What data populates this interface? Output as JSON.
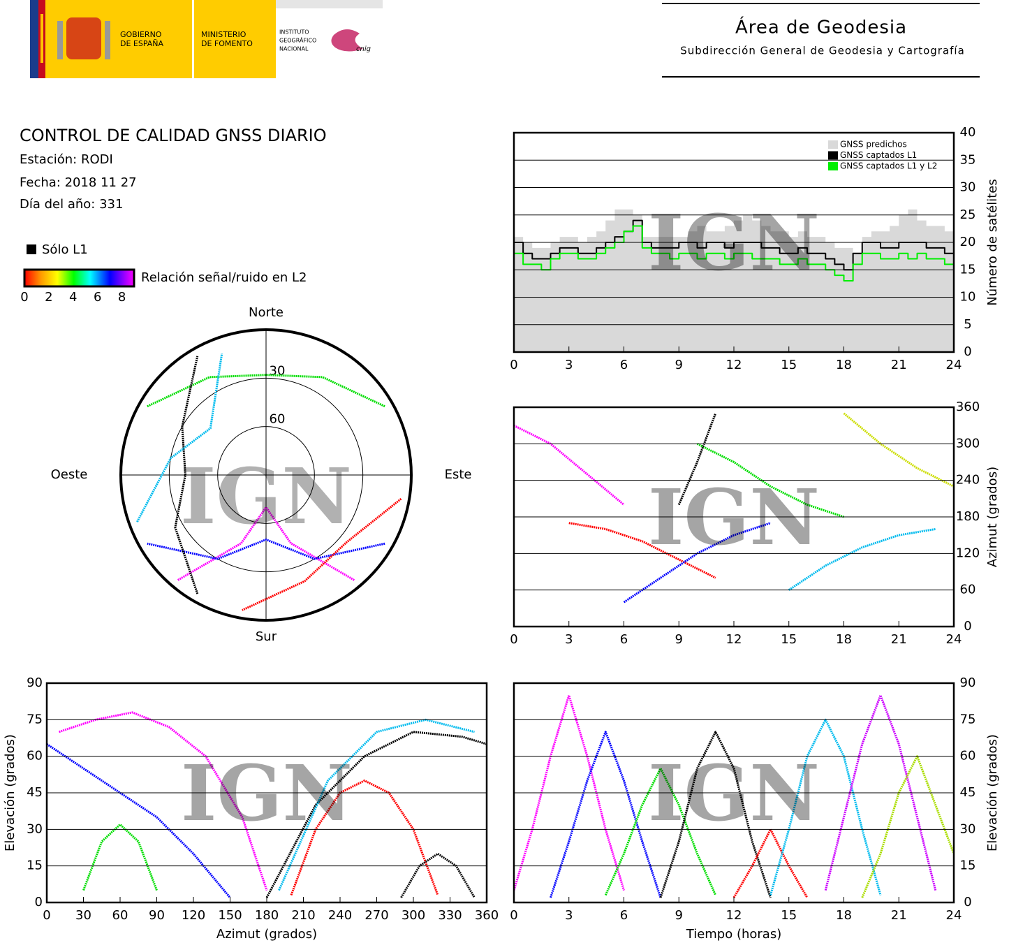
{
  "header": {
    "gov": [
      "GOBIERNO",
      "DE ESPAÑA"
    ],
    "ministry": [
      "MINISTERIO",
      "DE FOMENTO"
    ],
    "institute": [
      "INSTITUTO",
      "GEOGRÁFICO",
      "NACIONAL"
    ],
    "cnig": "cnig",
    "area": "Área de Geodesia",
    "subarea": "Subdirección General de Geodesia y Cartografía"
  },
  "report": {
    "title": "CONTROL DE CALIDAD GNSS DIARIO",
    "station": "Estación: RODI",
    "date": "Fecha: 2018 11 27",
    "doy": "Día del año: 331"
  },
  "legend": {
    "l1_only": "Sólo L1",
    "snr_label": "Relación señal/ruido en L2",
    "snr_ticks": [
      0,
      2,
      4,
      6,
      8
    ]
  },
  "chart_data": [
    {
      "type": "line",
      "step": true,
      "watermark": "IGN",
      "grid": true,
      "legend": "upper right",
      "yaxis_side": "right",
      "ylabel": "Número de satélites",
      "xlim": [
        0,
        24
      ],
      "xticks": [
        0,
        3,
        6,
        9,
        12,
        15,
        18,
        21,
        24
      ],
      "ylim": [
        0,
        40
      ],
      "yticks": [
        0,
        5,
        10,
        15,
        20,
        25,
        30,
        35,
        40
      ],
      "x": [
        0,
        0.5,
        1,
        1.5,
        2,
        2.5,
        3,
        3.5,
        4,
        4.5,
        5,
        5.5,
        6,
        6.5,
        7,
        7.5,
        8,
        8.5,
        9,
        9.5,
        10,
        10.5,
        11,
        11.5,
        12,
        12.5,
        13,
        13.5,
        14,
        14.5,
        15,
        15.5,
        16,
        16.5,
        17,
        17.5,
        18,
        18.5,
        19,
        19.5,
        20,
        20.5,
        21,
        21.5,
        22,
        22.5,
        23,
        23.5,
        24
      ],
      "series": [
        {
          "name": "GNSS predichos",
          "color": "#d9d9d9",
          "area": true,
          "values": [
            21,
            20,
            19,
            19,
            20,
            21,
            21,
            20,
            21,
            22,
            24,
            26,
            26,
            25,
            21,
            21,
            21,
            21,
            21,
            22,
            23,
            22,
            22,
            23,
            24,
            25,
            24,
            23,
            22,
            22,
            21,
            22,
            21,
            21,
            20,
            19,
            19,
            18,
            21,
            22,
            22,
            23,
            25,
            26,
            24,
            23,
            23,
            22,
            21
          ]
        },
        {
          "name": "GNSS captados L1",
          "color": "#000000",
          "values": [
            20,
            18,
            17,
            17,
            18,
            19,
            19,
            18,
            18,
            19,
            20,
            21,
            22,
            24,
            20,
            19,
            19,
            19,
            20,
            20,
            19,
            20,
            20,
            19,
            20,
            20,
            20,
            19,
            19,
            18,
            18,
            19,
            18,
            18,
            17,
            16,
            15,
            18,
            20,
            20,
            19,
            19,
            20,
            20,
            20,
            19,
            19,
            18,
            18
          ]
        },
        {
          "name": "GNSS captados L1 y L2",
          "color": "#00ee00",
          "values": [
            18,
            16,
            16,
            15,
            17,
            18,
            18,
            17,
            17,
            18,
            19,
            20,
            22,
            23,
            19,
            18,
            18,
            17,
            18,
            18,
            17,
            18,
            18,
            17,
            18,
            18,
            17,
            17,
            17,
            16,
            16,
            17,
            16,
            16,
            15,
            14,
            13,
            16,
            18,
            18,
            17,
            17,
            18,
            17,
            18,
            17,
            17,
            16,
            16
          ]
        }
      ]
    },
    {
      "type": "line",
      "watermark": "IGN",
      "grid": true,
      "yaxis_side": "right",
      "ylabel": "Azimut (grados)",
      "xlim": [
        0,
        24
      ],
      "xticks": [
        0,
        3,
        6,
        9,
        12,
        15,
        18,
        21,
        24
      ],
      "ylim": [
        0,
        360
      ],
      "yticks": [
        0,
        60,
        120,
        180,
        240,
        300,
        360
      ],
      "series": [
        {
          "color": "#ff00ff",
          "x": [
            0,
            2,
            4,
            6
          ],
          "values": [
            330,
            300,
            250,
            200
          ]
        },
        {
          "color": "#ff0000",
          "x": [
            3,
            5,
            7,
            9,
            11
          ],
          "values": [
            170,
            160,
            140,
            110,
            80
          ]
        },
        {
          "color": "#0000ff",
          "x": [
            6,
            8,
            10,
            12,
            14
          ],
          "values": [
            40,
            80,
            120,
            150,
            170
          ]
        },
        {
          "color": "#00dd00",
          "x": [
            10,
            12,
            14,
            16,
            18
          ],
          "values": [
            300,
            270,
            230,
            200,
            180
          ]
        },
        {
          "color": "#000000",
          "x": [
            9,
            10,
            11
          ],
          "values": [
            200,
            270,
            350
          ]
        },
        {
          "color": "#00bbee",
          "x": [
            15,
            17,
            19,
            21,
            23
          ],
          "values": [
            60,
            100,
            130,
            150,
            160
          ]
        },
        {
          "color": "#ccdd00",
          "x": [
            18,
            20,
            22,
            24
          ],
          "values": [
            350,
            300,
            260,
            230
          ]
        }
      ]
    },
    {
      "type": "line",
      "watermark": "IGN",
      "grid": true,
      "yaxis_side": "left",
      "xlabel": "Azimut (grados)",
      "ylabel": "Elevación (grados)",
      "xlim": [
        0,
        360
      ],
      "xticks": [
        0,
        30,
        60,
        90,
        120,
        150,
        180,
        210,
        240,
        270,
        300,
        330,
        360
      ],
      "ylim": [
        0,
        90
      ],
      "yticks": [
        0,
        15,
        30,
        45,
        60,
        75,
        90
      ],
      "series": [
        {
          "color": "#ff00ff",
          "x": [
            10,
            40,
            70,
            100,
            130,
            160,
            180
          ],
          "values": [
            70,
            75,
            78,
            72,
            60,
            35,
            5
          ]
        },
        {
          "color": "#ff0000",
          "x": [
            200,
            220,
            240,
            260,
            280,
            300,
            320
          ],
          "values": [
            3,
            30,
            45,
            50,
            45,
            30,
            3
          ]
        },
        {
          "color": "#000000",
          "x": [
            180,
            220,
            260,
            300,
            340,
            360
          ],
          "values": [
            2,
            40,
            60,
            70,
            68,
            65
          ]
        },
        {
          "color": "#0000ff",
          "x": [
            0,
            30,
            60,
            90,
            120,
            150
          ],
          "values": [
            65,
            55,
            45,
            35,
            20,
            2
          ]
        },
        {
          "color": "#00dd00",
          "x": [
            30,
            45,
            60,
            75,
            90
          ],
          "values": [
            5,
            25,
            32,
            25,
            5
          ]
        },
        {
          "color": "#00bbee",
          "x": [
            190,
            230,
            270,
            310,
            350
          ],
          "values": [
            5,
            50,
            70,
            75,
            70
          ]
        },
        {
          "color": "#111111",
          "x": [
            290,
            305,
            320,
            335,
            350
          ],
          "values": [
            2,
            15,
            20,
            15,
            2
          ]
        }
      ]
    },
    {
      "type": "line",
      "watermark": "IGN",
      "grid": true,
      "yaxis_side": "right",
      "xlabel": "Tiempo (horas)",
      "ylabel": "Elevación (grados)",
      "xlim": [
        0,
        24
      ],
      "xticks": [
        0,
        3,
        6,
        9,
        12,
        15,
        18,
        21,
        24
      ],
      "ylim": [
        0,
        90
      ],
      "yticks": [
        0,
        15,
        30,
        45,
        60,
        75,
        90
      ],
      "series": [
        {
          "color": "#ff00ff",
          "x": [
            0,
            1,
            2,
            3,
            4,
            5,
            6
          ],
          "values": [
            5,
            30,
            60,
            85,
            60,
            30,
            5
          ]
        },
        {
          "color": "#0000ff",
          "x": [
            2,
            3,
            4,
            5,
            6,
            7,
            8
          ],
          "values": [
            2,
            25,
            50,
            70,
            50,
            25,
            2
          ]
        },
        {
          "color": "#00dd00",
          "x": [
            5,
            6,
            7,
            8,
            9,
            10,
            11
          ],
          "values": [
            3,
            20,
            40,
            55,
            40,
            20,
            3
          ]
        },
        {
          "color": "#000000",
          "x": [
            8,
            9,
            10,
            11,
            12,
            13,
            14
          ],
          "values": [
            2,
            25,
            55,
            70,
            55,
            25,
            2
          ]
        },
        {
          "color": "#ff0000",
          "x": [
            12,
            13,
            14,
            15,
            16
          ],
          "values": [
            2,
            15,
            30,
            15,
            2
          ]
        },
        {
          "color": "#00bbee",
          "x": [
            14,
            15,
            16,
            17,
            18,
            19,
            20
          ],
          "values": [
            3,
            30,
            60,
            75,
            60,
            30,
            3
          ]
        },
        {
          "color": "#cc00ff",
          "x": [
            17,
            18,
            19,
            20,
            21,
            22,
            23
          ],
          "values": [
            5,
            35,
            65,
            85,
            65,
            35,
            5
          ]
        },
        {
          "color": "#aadd00",
          "x": [
            19,
            20,
            21,
            22,
            23,
            24
          ],
          "values": [
            2,
            20,
            45,
            60,
            40,
            20
          ]
        }
      ]
    },
    {
      "type": "polar",
      "watermark": "IGN",
      "directions": [
        "Norte",
        "Este",
        "Sur",
        "Oeste"
      ],
      "rlim": [
        0,
        90
      ],
      "rticks": [
        30,
        60
      ],
      "series": [
        {
          "color": "#ff00ff",
          "x": [
            140,
            160,
            180,
            200,
            220
          ],
          "values": [
            5,
            45,
            70,
            45,
            5
          ]
        },
        {
          "color": "#0000ff",
          "x": [
            120,
            150,
            180,
            210,
            240
          ],
          "values": [
            5,
            30,
            50,
            30,
            5
          ]
        },
        {
          "color": "#ff0000",
          "x": [
            100,
            130,
            160,
            190
          ],
          "values": [
            5,
            25,
            20,
            5
          ]
        },
        {
          "color": "#00dd00",
          "x": [
            300,
            330,
            0,
            30,
            60
          ],
          "values": [
            5,
            20,
            28,
            20,
            5
          ]
        },
        {
          "color": "#000000",
          "x": [
            210,
            240,
            270,
            300,
            330
          ],
          "values": [
            5,
            25,
            40,
            30,
            5
          ]
        },
        {
          "color": "#00bbee",
          "x": [
            250,
            280,
            310,
            340
          ],
          "values": [
            5,
            30,
            45,
            10
          ]
        }
      ]
    }
  ]
}
